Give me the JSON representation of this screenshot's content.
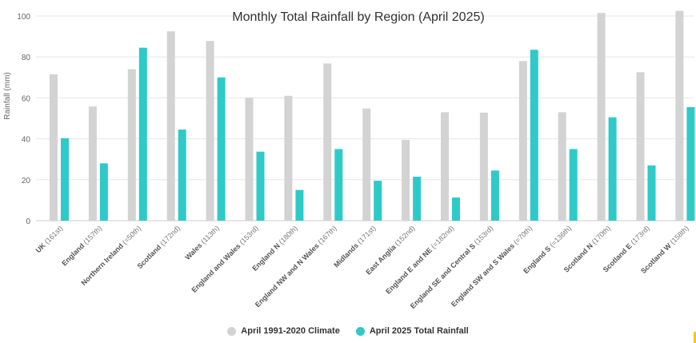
{
  "chart_data": {
    "type": "bar",
    "title": "Monthly Total Rainfall by Region (April 2025)",
    "ylabel": "Rainfall (mm)",
    "xlabel": "",
    "ylim": [
      0,
      100
    ],
    "yticks": [
      0,
      20,
      40,
      60,
      80,
      100
    ],
    "grid": true,
    "legend_position": "bottom",
    "categories": [
      {
        "name": "UK",
        "rank": "(161st)"
      },
      {
        "name": "England",
        "rank": "(157th)"
      },
      {
        "name": "Northern Ireland",
        "rank": "(=50th)"
      },
      {
        "name": "Scotland",
        "rank": "(172nd)"
      },
      {
        "name": "Wales",
        "rank": "(113th)"
      },
      {
        "name": "England and Wales",
        "rank": "(153rd)"
      },
      {
        "name": "England N",
        "rank": "(180th)"
      },
      {
        "name": "England NW and N Wales",
        "rank": "(167th)"
      },
      {
        "name": "Midlands",
        "rank": "(171st)"
      },
      {
        "name": "East Anglia",
        "rank": "(152nd)"
      },
      {
        "name": "England E and NE",
        "rank": "(=182nd)"
      },
      {
        "name": "England SE and Central S",
        "rank": "(153rd)"
      },
      {
        "name": "England SW and S Wales",
        "rank": "(=70th)"
      },
      {
        "name": "England S",
        "rank": "(=136th)"
      },
      {
        "name": "Scotland N",
        "rank": "(170th)"
      },
      {
        "name": "Scotland E",
        "rank": "(173rd)"
      },
      {
        "name": "Scotland W",
        "rank": "(158th)"
      }
    ],
    "series": [
      {
        "name": "April 1991-2020 Climate",
        "color": "#d3d3d3",
        "values": [
          71.5,
          55.8,
          74,
          92.5,
          87.8,
          60,
          61,
          76.8,
          54.8,
          39.5,
          53,
          52.8,
          78,
          53,
          101.5,
          72.5,
          102.5
        ]
      },
      {
        "name": "April 2025 Total Rainfall",
        "color": "#2ecac8",
        "values": [
          40.3,
          28,
          84.5,
          44.5,
          70,
          33.7,
          15,
          35,
          19.5,
          21.5,
          11.3,
          24.5,
          83.5,
          35,
          50.5,
          27,
          55.5
        ]
      }
    ]
  }
}
